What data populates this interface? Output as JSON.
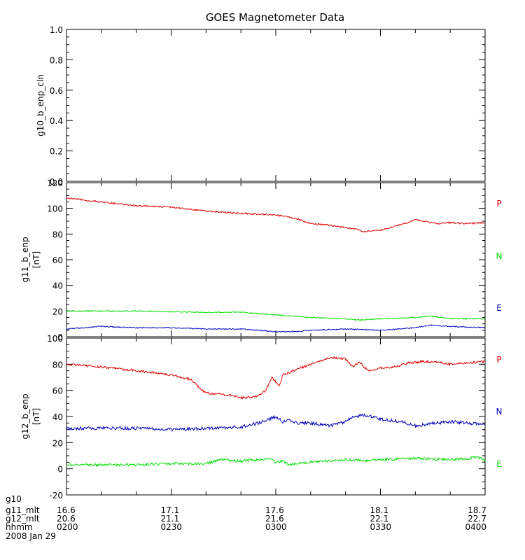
{
  "title": "GOES Magnetometer Data",
  "colors": {
    "P": "#dd0000",
    "N": "#00dd00",
    "E": "#0000bb",
    "axis": "#000000"
  },
  "chart_data": [
    {
      "type": "line",
      "ylabel": "g10_b_enp_cln",
      "ylim": [
        0,
        1.0
      ],
      "yticks": [
        0.0,
        0.2,
        0.4,
        0.6,
        0.8,
        1.0
      ],
      "ytick_labels": [
        "0.0",
        "0.2",
        "0.4",
        "0.6",
        "0.8",
        "1.0"
      ],
      "series": []
    },
    {
      "type": "line",
      "ylabel": "g11_b_enp",
      "yunit": "[nT]",
      "ylim": [
        0,
        120
      ],
      "yticks": [
        0,
        20,
        40,
        60,
        80,
        100,
        120
      ],
      "ytick_labels": [
        "0",
        "20",
        "40",
        "60",
        "80",
        "100",
        "120"
      ],
      "series": [
        {
          "name": "P",
          "color": "#dd0000",
          "noise": 0.6,
          "x": [
            0,
            10,
            20,
            30,
            40,
            50,
            60,
            66,
            70,
            75,
            80,
            83,
            85,
            90,
            94,
            98,
            100,
            103,
            106,
            110,
            115,
            120
          ],
          "y": [
            108,
            105,
            102,
            101,
            98,
            96,
            95,
            92,
            88,
            87,
            85,
            84,
            82,
            83,
            86,
            89,
            91,
            90,
            88,
            89,
            88,
            89
          ]
        },
        {
          "name": "N",
          "color": "#00dd00",
          "noise": 0.4,
          "x": [
            0,
            20,
            40,
            50,
            60,
            70,
            80,
            84,
            90,
            100,
            105,
            110,
            120
          ],
          "y": [
            20,
            20,
            19,
            19,
            17,
            15,
            14,
            13,
            14,
            15,
            16,
            14,
            14
          ]
        },
        {
          "name": "E",
          "color": "#0000bb",
          "noise": 0.4,
          "x": [
            0,
            10,
            20,
            30,
            40,
            50,
            60,
            66,
            70,
            80,
            90,
            100,
            104,
            110,
            120
          ],
          "y": [
            6,
            8,
            7,
            7,
            6,
            6,
            4,
            4,
            5,
            6,
            5,
            7,
            9,
            8,
            7
          ]
        }
      ]
    },
    {
      "type": "line",
      "ylabel": "g12_b_enp",
      "yunit": "[nT]",
      "ylim": [
        -20,
        100
      ],
      "yticks": [
        -20,
        0,
        20,
        40,
        60,
        80,
        100
      ],
      "ytick_labels": [
        "-20",
        "0",
        "20",
        "40",
        "60",
        "80",
        "100"
      ],
      "series": [
        {
          "name": "P",
          "color": "#dd0000",
          "noise": 0.9,
          "x": [
            0,
            10,
            20,
            30,
            36,
            38,
            40,
            44,
            48,
            51,
            55,
            57,
            59,
            61,
            62,
            64,
            66,
            68,
            70,
            72,
            76,
            80,
            82,
            84,
            86,
            88,
            90,
            94,
            98,
            102,
            106,
            110,
            115,
            120
          ],
          "y": [
            80,
            78,
            75,
            72,
            68,
            62,
            58,
            57,
            56,
            54,
            56,
            60,
            70,
            63,
            72,
            74,
            76,
            78,
            80,
            82,
            85,
            84,
            78,
            82,
            76,
            75,
            77,
            78,
            81,
            82,
            82,
            80,
            81,
            82
          ]
        },
        {
          "name": "N",
          "color": "#0000bb",
          "noise": 1.2,
          "x": [
            0,
            20,
            30,
            40,
            50,
            55,
            58,
            60,
            62,
            64,
            66,
            70,
            76,
            80,
            82,
            86,
            90,
            96,
            100,
            106,
            110,
            115,
            120
          ],
          "y": [
            31,
            31,
            30,
            31,
            32,
            35,
            38,
            40,
            36,
            37,
            35,
            35,
            33,
            36,
            40,
            41,
            38,
            36,
            33,
            35,
            36,
            35,
            34
          ]
        },
        {
          "name": "E",
          "color": "#00dd00",
          "noise": 1.0,
          "x": [
            0,
            20,
            30,
            40,
            44,
            50,
            55,
            58,
            60,
            62,
            64,
            66,
            70,
            76,
            80,
            86,
            90,
            100,
            110,
            115,
            118,
            120
          ],
          "y": [
            3,
            3,
            4,
            4,
            7,
            6,
            7,
            8,
            5,
            6,
            3,
            4,
            5,
            6,
            7,
            6,
            7,
            8,
            7,
            8,
            9,
            6
          ]
        }
      ]
    }
  ],
  "x_axis": {
    "xlim": [
      0,
      120
    ],
    "major_ticks": [
      0,
      30,
      60,
      90,
      120
    ],
    "minor_step": 10
  },
  "footer": {
    "rows": [
      {
        "label": "g10",
        "values": [
          "",
          "",
          "",
          "",
          ""
        ]
      },
      {
        "label": "g11_mlt",
        "values": [
          "16.6",
          "17.1",
          "17.6",
          "18.1",
          "18.7"
        ]
      },
      {
        "label": "g12_mlt",
        "values": [
          "20.6",
          "21.1",
          "21.6",
          "22.1",
          "22.7"
        ]
      },
      {
        "label": "hhmm",
        "values": [
          "0200",
          "0230",
          "0300",
          "0330",
          "0400"
        ]
      }
    ],
    "date": "2008 Jan 29"
  }
}
